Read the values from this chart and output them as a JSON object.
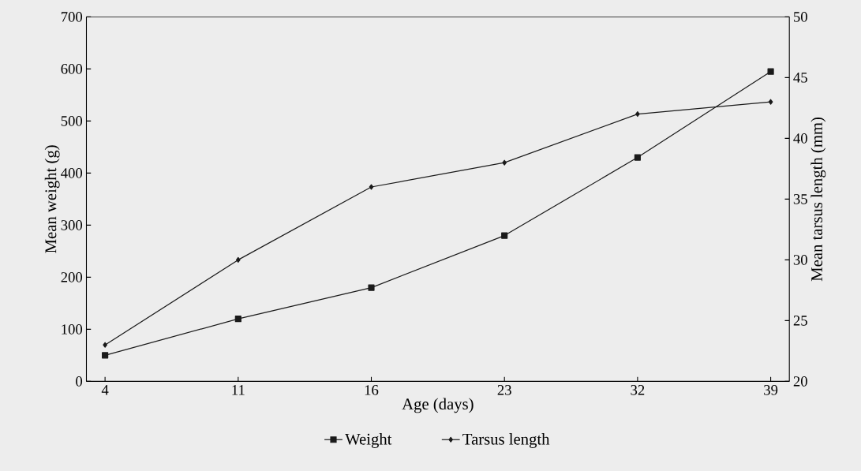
{
  "chart_data": {
    "type": "line",
    "xlabel": "Age (days)",
    "ylabel": "Mean weight (g)",
    "y2label": "Mean tarsus length (mm)",
    "categories": [
      "4",
      "11",
      "16",
      "23",
      "32",
      "39"
    ],
    "series": [
      {
        "name": "Weight",
        "color": "#1a1a1a",
        "marker": "square",
        "values": [
          50,
          120,
          180,
          280,
          430,
          595
        ]
      },
      {
        "name": "Tarsus length",
        "color": "#1a1a1a",
        "marker": "diamond",
        "axis": "y2",
        "values": [
          23,
          30,
          36,
          38,
          42,
          43
        ]
      }
    ],
    "ylim": [
      0,
      700
    ],
    "yticks": [
      0,
      100,
      200,
      300,
      400,
      500,
      600,
      700
    ],
    "y2lim": [
      20,
      50
    ],
    "y2ticks": [
      20,
      25,
      30,
      35,
      40,
      45,
      50
    ],
    "legend": "bottom",
    "line_style": "solid",
    "grid": false
  }
}
